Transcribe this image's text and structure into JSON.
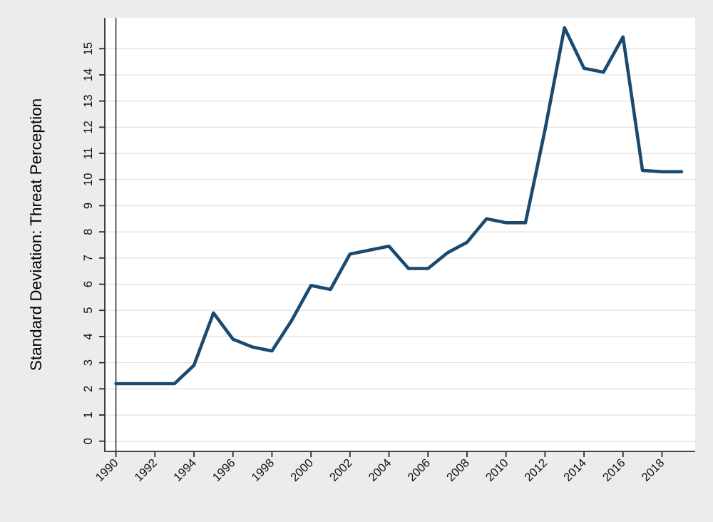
{
  "page": {
    "background": "#ececec"
  },
  "chart_data": {
    "type": "line",
    "title": "",
    "xlabel": "",
    "ylabel": "Standard Deviation: Threat Perception",
    "x": [
      1990,
      1991,
      1992,
      1993,
      1994,
      1995,
      1996,
      1997,
      1998,
      1999,
      2000,
      2001,
      2002,
      2003,
      2004,
      2005,
      2006,
      2007,
      2008,
      2009,
      2010,
      2011,
      2012,
      2013,
      2014,
      2015,
      2016,
      2017,
      2018,
      2019
    ],
    "series": [
      {
        "name": "Standard Deviation: Threat Perception",
        "color": "#1b4a70",
        "values": [
          2.2,
          2.2,
          2.2,
          2.2,
          2.9,
          4.9,
          3.9,
          3.6,
          3.45,
          4.6,
          5.95,
          5.8,
          7.15,
          7.3,
          7.45,
          6.6,
          6.6,
          7.2,
          7.6,
          8.5,
          8.35,
          8.35,
          11.9,
          15.8,
          14.25,
          14.1,
          15.45,
          10.35,
          10.3,
          10.3
        ]
      }
    ],
    "x_ticks": [
      "1990",
      "1992",
      "1994",
      "1996",
      "1998",
      "2000",
      "2002",
      "2004",
      "2006",
      "2008",
      "2010",
      "2012",
      "2014",
      "2016",
      "2018"
    ],
    "y_ticks": [
      "0",
      "1",
      "2",
      "3",
      "4",
      "5",
      "6",
      "7",
      "8",
      "9",
      "10",
      "11",
      "12",
      "13",
      "14",
      "15"
    ],
    "xlim": [
      1989.43,
      2019.7
    ],
    "ylim": [
      -0.39,
      16.18
    ],
    "grid": "horizontal gridlines at each y unit",
    "legend": "none",
    "reference_line_x": 1990,
    "colors": {
      "page_bg": "#ececec",
      "plot_bg": "#ffffff",
      "grid": "#e2e2e2",
      "axis": "#2b2b2b",
      "tick_text": "#111111",
      "line": "#1b4a70"
    }
  }
}
